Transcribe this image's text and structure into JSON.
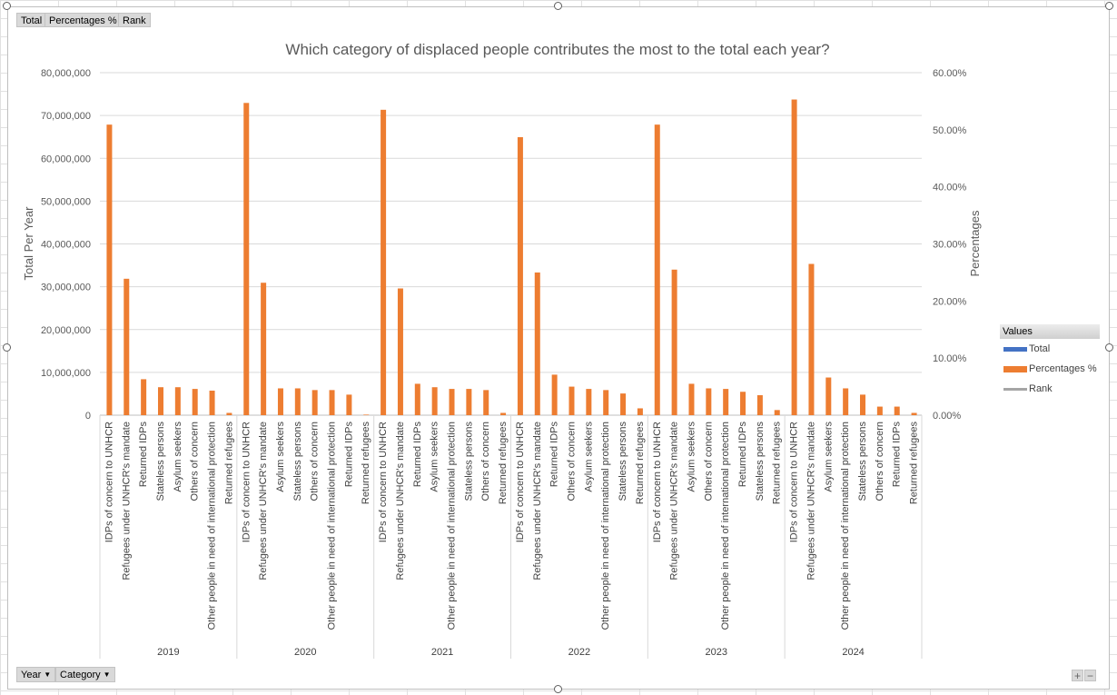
{
  "value_buttons": [
    "Total",
    "Percentages %",
    "Rank"
  ],
  "axis_buttons": [
    "Year",
    "Category"
  ],
  "legend": {
    "title": "Values",
    "items": [
      {
        "label": "Total",
        "color": "#4472c4"
      },
      {
        "label": "Percentages %",
        "color": "#ed7d31"
      },
      {
        "label": "Rank",
        "color": "#a5a5a5"
      }
    ]
  },
  "zoom": {
    "plus": "+",
    "minus": "−"
  },
  "chart_data": {
    "type": "bar",
    "title": "Which category of displaced people contributes the most to the total each year?",
    "ylabel": "Total Per Year",
    "y2label": "Percentages",
    "ylim": [
      0,
      80000000
    ],
    "y2lim": [
      0,
      0.6
    ],
    "yticks": [
      "0",
      "10,000,000",
      "20,000,000",
      "30,000,000",
      "40,000,000",
      "50,000,000",
      "60,000,000",
      "70,000,000",
      "80,000,000"
    ],
    "y2ticks": [
      "0.00%",
      "10.00%",
      "20.00%",
      "30.00%",
      "40.00%",
      "50.00%",
      "60.00%"
    ],
    "grid": true,
    "legend_position": "right",
    "bar_series": "Percentages %",
    "groups": [
      {
        "year": "2019",
        "categories": [
          {
            "name": "IDPs of concern to UNHCR",
            "value": 0.509
          },
          {
            "name": "Refugees under UNHCR's mandate",
            "value": 0.239
          },
          {
            "name": "Returned IDPs",
            "value": 0.063
          },
          {
            "name": "Stateless persons",
            "value": 0.049
          },
          {
            "name": "Asylum seekers",
            "value": 0.049
          },
          {
            "name": "Others of concern",
            "value": 0.046
          },
          {
            "name": "Other people in need of international protection",
            "value": 0.043
          },
          {
            "name": "Returned refugees",
            "value": 0.004
          }
        ]
      },
      {
        "year": "2020",
        "categories": [
          {
            "name": "IDPs of concern to UNHCR",
            "value": 0.547
          },
          {
            "name": "Refugees under UNHCR's mandate",
            "value": 0.232
          },
          {
            "name": "Asylum seekers",
            "value": 0.047
          },
          {
            "name": "Stateless persons",
            "value": 0.047
          },
          {
            "name": "Others of concern",
            "value": 0.044
          },
          {
            "name": "Other people in need of international protection",
            "value": 0.044
          },
          {
            "name": "Returned IDPs",
            "value": 0.036
          },
          {
            "name": "Returned refugees",
            "value": 0.001
          }
        ]
      },
      {
        "year": "2021",
        "categories": [
          {
            "name": "IDPs of concern to UNHCR",
            "value": 0.535
          },
          {
            "name": "Refugees under UNHCR's mandate",
            "value": 0.222
          },
          {
            "name": "Returned IDPs",
            "value": 0.055
          },
          {
            "name": "Asylum seekers",
            "value": 0.049
          },
          {
            "name": "Other people in need of international protection",
            "value": 0.046
          },
          {
            "name": "Stateless persons",
            "value": 0.046
          },
          {
            "name": "Others of concern",
            "value": 0.044
          },
          {
            "name": "Returned refugees",
            "value": 0.004
          }
        ]
      },
      {
        "year": "2022",
        "categories": [
          {
            "name": "IDPs of concern to UNHCR",
            "value": 0.487
          },
          {
            "name": "Refugees under UNHCR's mandate",
            "value": 0.25
          },
          {
            "name": "Returned IDPs",
            "value": 0.071
          },
          {
            "name": "Others of concern",
            "value": 0.05
          },
          {
            "name": "Asylum seekers",
            "value": 0.046
          },
          {
            "name": "Other people in need of international protection",
            "value": 0.044
          },
          {
            "name": "Stateless persons",
            "value": 0.038
          },
          {
            "name": "Returned refugees",
            "value": 0.012
          }
        ]
      },
      {
        "year": "2023",
        "categories": [
          {
            "name": "IDPs of concern to UNHCR",
            "value": 0.509
          },
          {
            "name": "Refugees under UNHCR's mandate",
            "value": 0.255
          },
          {
            "name": "Asylum seekers",
            "value": 0.055
          },
          {
            "name": "Others of concern",
            "value": 0.047
          },
          {
            "name": "Other people in need of international protection",
            "value": 0.046
          },
          {
            "name": "Returned IDPs",
            "value": 0.041
          },
          {
            "name": "Stateless persons",
            "value": 0.035
          },
          {
            "name": "Returned refugees",
            "value": 0.009
          }
        ]
      },
      {
        "year": "2024",
        "categories": [
          {
            "name": "IDPs of concern to UNHCR",
            "value": 0.553
          },
          {
            "name": "Refugees under UNHCR's mandate",
            "value": 0.265
          },
          {
            "name": "Asylum seekers",
            "value": 0.066
          },
          {
            "name": "Other people in need of international protection",
            "value": 0.047
          },
          {
            "name": "Stateless persons",
            "value": 0.036
          },
          {
            "name": "Others of concern",
            "value": 0.015
          },
          {
            "name": "Returned IDPs",
            "value": 0.015
          },
          {
            "name": "Returned refugees",
            "value": 0.004
          }
        ]
      }
    ]
  }
}
